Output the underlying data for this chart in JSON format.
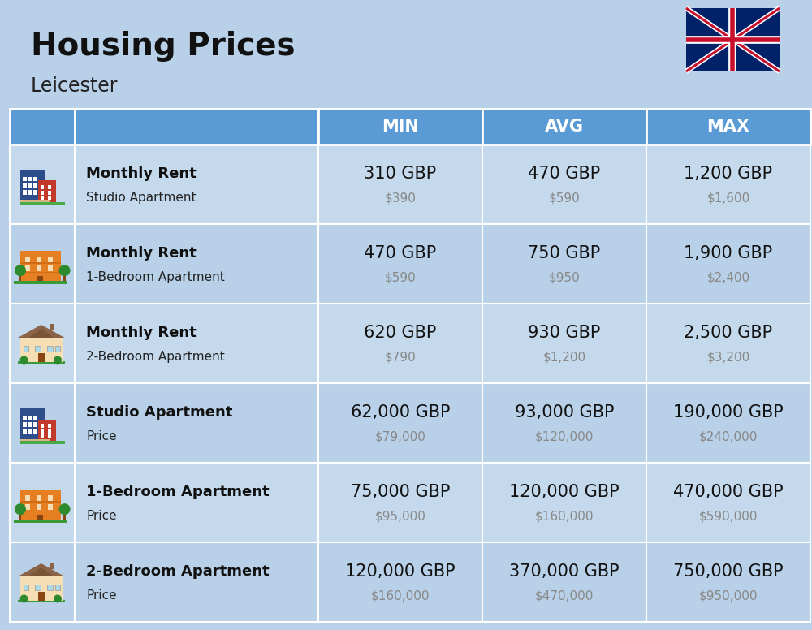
{
  "title": "Housing Prices",
  "subtitle": "Leicester",
  "background_color": "#b8d0e8",
  "header_bg_color": "#5b9bd5",
  "header_text_color": "#ffffff",
  "row_bg_even": "#c5d9ec",
  "row_bg_odd": "#b8d0e8",
  "col_headers": [
    "MIN",
    "AVG",
    "MAX"
  ],
  "rows": [
    {
      "label_bold": "Monthly Rent",
      "label_sub": "Studio Apartment",
      "min_gbp": "310 GBP",
      "min_usd": "$390",
      "avg_gbp": "470 GBP",
      "avg_usd": "$590",
      "max_gbp": "1,200 GBP",
      "max_usd": "$1,600",
      "icon_type": "studio_blue"
    },
    {
      "label_bold": "Monthly Rent",
      "label_sub": "1-Bedroom Apartment",
      "min_gbp": "470 GBP",
      "min_usd": "$590",
      "avg_gbp": "750 GBP",
      "avg_usd": "$950",
      "max_gbp": "1,900 GBP",
      "max_usd": "$2,400",
      "icon_type": "one_bed_orange"
    },
    {
      "label_bold": "Monthly Rent",
      "label_sub": "2-Bedroom Apartment",
      "min_gbp": "620 GBP",
      "min_usd": "$790",
      "avg_gbp": "930 GBP",
      "avg_usd": "$1,200",
      "max_gbp": "2,500 GBP",
      "max_usd": "$3,200",
      "icon_type": "two_bed_beige"
    },
    {
      "label_bold": "Studio Apartment",
      "label_sub": "Price",
      "min_gbp": "62,000 GBP",
      "min_usd": "$79,000",
      "avg_gbp": "93,000 GBP",
      "avg_usd": "$120,000",
      "max_gbp": "190,000 GBP",
      "max_usd": "$240,000",
      "icon_type": "studio_blue"
    },
    {
      "label_bold": "1-Bedroom Apartment",
      "label_sub": "Price",
      "min_gbp": "75,000 GBP",
      "min_usd": "$95,000",
      "avg_gbp": "120,000 GBP",
      "avg_usd": "$160,000",
      "max_gbp": "470,000 GBP",
      "max_usd": "$590,000",
      "icon_type": "one_bed_orange"
    },
    {
      "label_bold": "2-Bedroom Apartment",
      "label_sub": "Price",
      "min_gbp": "120,000 GBP",
      "min_usd": "$160,000",
      "avg_gbp": "370,000 GBP",
      "avg_usd": "$470,000",
      "max_gbp": "750,000 GBP",
      "max_usd": "$950,000",
      "icon_type": "two_bed_beige"
    }
  ],
  "gbp_fontsize": 15,
  "usd_fontsize": 11,
  "label_bold_fontsize": 13,
  "label_sub_fontsize": 11,
  "header_fontsize": 15
}
